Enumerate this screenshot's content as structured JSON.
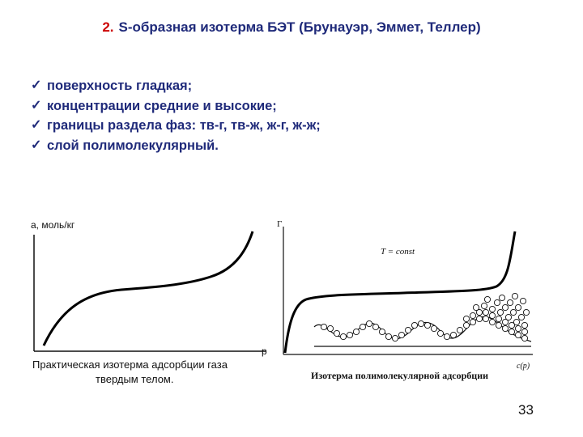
{
  "title": {
    "number": "2.",
    "text": "S-образная изотерма БЭТ (Брунауэр, Эммет, Теллер)"
  },
  "bullets": [
    "поверхность гладкая;",
    "концентрации средние и высокие;",
    "границы раздела фаз: тв-г, тв-ж, ж-г, ж-ж;",
    "слой полимолекулярный."
  ],
  "left_figure": {
    "y_axis_label": "a, моль/кг",
    "x_axis_label": "p",
    "caption_line1": "Практическая  изотерма  адсорбции  газа",
    "caption_line2": "твердым  телом."
  },
  "right_figure": {
    "y_axis_label": "Г",
    "annotation": "T = const",
    "x_axis_label": "c(p)",
    "caption": "Изотерма полимолекулярной адсорбции"
  },
  "page_number": "33"
}
